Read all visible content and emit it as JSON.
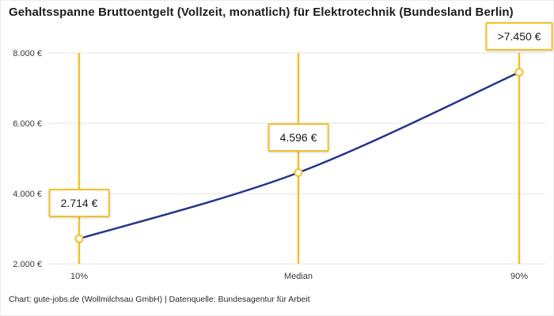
{
  "header": {
    "title": "Gehaltsspanne Bruttoentgelt (Vollzeit, monatlich) für Elektrotechnik (Bundesland Berlin)"
  },
  "footer": {
    "credit": "Chart: gute-jobs.de (Wollmilchsau GmbH) | Datenquelle: Bundesagentur für Arbeit"
  },
  "colors": {
    "accent_yellow": "#F2C029",
    "line_blue": "#27348B",
    "grid": "#E4E4E4",
    "text": "#1A1A1A"
  },
  "chart_data": {
    "type": "line",
    "title": "Gehaltsspanne Bruttoentgelt (Vollzeit, monatlich) für Elektrotechnik (Bundesland Berlin)",
    "categories": [
      "10%",
      "Median",
      "90%"
    ],
    "values": [
      2714,
      4596,
      7450
    ],
    "point_labels": [
      "2.714 €",
      "4.596 €",
      ">7.450 €"
    ],
    "ylim": [
      2000,
      8000
    ],
    "yticks": [
      {
        "value": 2000,
        "label": "2.000 €"
      },
      {
        "value": 4000,
        "label": "4.000 €"
      },
      {
        "value": 6000,
        "label": "6.000 €"
      },
      {
        "value": 8000,
        "label": "8.000 €"
      }
    ],
    "grid": "horizontal",
    "legend": "none",
    "series_name": "Bruttoentgelt (Vollzeit, monatlich)"
  }
}
